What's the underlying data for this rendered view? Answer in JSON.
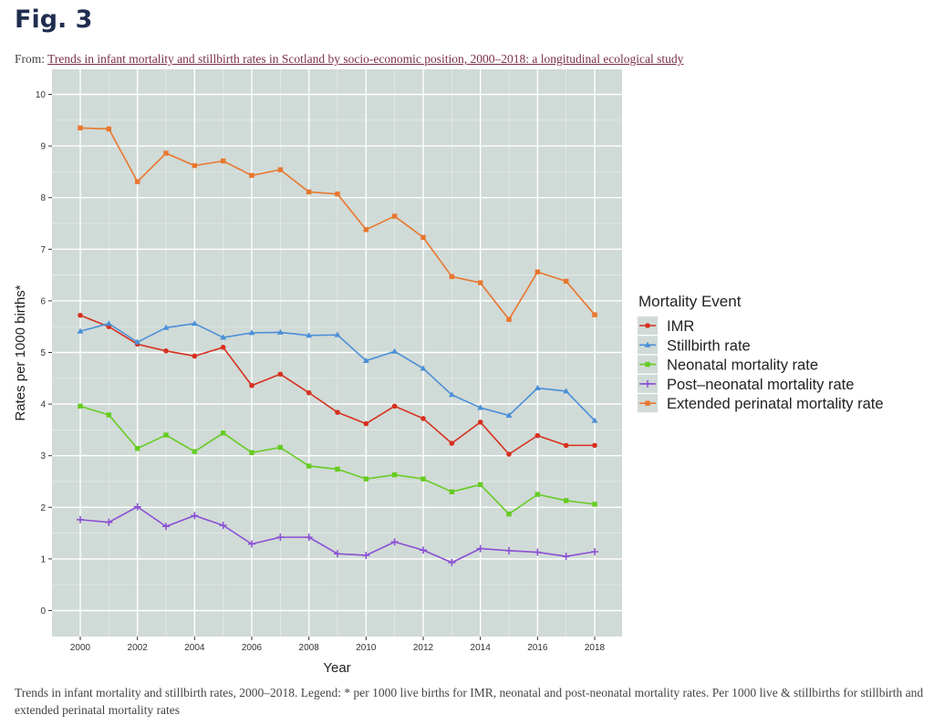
{
  "figure": {
    "label": "Fig. 3",
    "from_prefix": "From: ",
    "source_link_text": "Trends in infant mortality and stillbirth rates in Scotland by socio-economic position, 2000–2018: a longitudinal ecological study",
    "caption": "Trends in infant mortality and stillbirth rates, 2000–2018. Legend: * per 1000 live births for IMR, neonatal and post-neonatal mortality rates. Per 1000 live & stillbirths for stillbirth and extended perinatal mortality rates"
  },
  "chart_data": {
    "type": "line",
    "xlabel": "Year",
    "ylabel": "Rates per 1000 births*",
    "xlim": [
      2000,
      2018
    ],
    "ylim": [
      0,
      10
    ],
    "xticks": [
      2000,
      2002,
      2004,
      2006,
      2008,
      2010,
      2012,
      2014,
      2016,
      2018
    ],
    "yticks": [
      0,
      1,
      2,
      3,
      4,
      5,
      6,
      7,
      8,
      9,
      10
    ],
    "grid": true,
    "panel_background": "#d0dad6",
    "legend_title": "Mortality Event",
    "legend_position": "right",
    "x": [
      2000,
      2001,
      2002,
      2003,
      2004,
      2005,
      2006,
      2007,
      2008,
      2009,
      2010,
      2011,
      2012,
      2013,
      2014,
      2015,
      2016,
      2017,
      2018
    ],
    "series": [
      {
        "name": "IMR",
        "color": "#d7301f",
        "marker": "circle",
        "values": [
          5.72,
          5.5,
          5.16,
          5.03,
          4.93,
          5.1,
          4.36,
          4.58,
          4.22,
          3.84,
          3.62,
          3.96,
          3.72,
          3.24,
          3.65,
          3.03,
          3.39,
          3.2,
          3.2
        ]
      },
      {
        "name": "Stillbirth rate",
        "color": "#4a8fd8",
        "marker": "triangle",
        "values": [
          5.41,
          5.56,
          5.2,
          5.48,
          5.56,
          5.29,
          5.38,
          5.39,
          5.33,
          5.34,
          4.84,
          5.02,
          4.69,
          4.18,
          3.93,
          3.78,
          4.31,
          4.25,
          3.68
        ]
      },
      {
        "name": "Neonatal mortality rate",
        "color": "#66cc22",
        "marker": "square",
        "values": [
          3.96,
          3.79,
          3.14,
          3.4,
          3.08,
          3.44,
          3.06,
          3.16,
          2.8,
          2.74,
          2.55,
          2.63,
          2.55,
          2.3,
          2.44,
          1.87,
          2.25,
          2.13,
          2.06
        ]
      },
      {
        "name": "Post–neonatal mortality rate",
        "color": "#8a4fd4",
        "marker": "plus",
        "values": [
          1.76,
          1.71,
          2.01,
          1.63,
          1.84,
          1.65,
          1.29,
          1.42,
          1.42,
          1.1,
          1.07,
          1.33,
          1.17,
          0.93,
          1.2,
          1.16,
          1.13,
          1.05,
          1.14
        ]
      },
      {
        "name": "Extended perinatal mortality rate",
        "color": "#e8772e",
        "marker": "square",
        "values": [
          9.35,
          9.33,
          8.31,
          8.86,
          8.62,
          8.71,
          8.43,
          8.54,
          8.11,
          8.07,
          7.38,
          7.64,
          7.23,
          6.47,
          6.35,
          5.64,
          6.56,
          6.38,
          5.73
        ]
      }
    ]
  }
}
